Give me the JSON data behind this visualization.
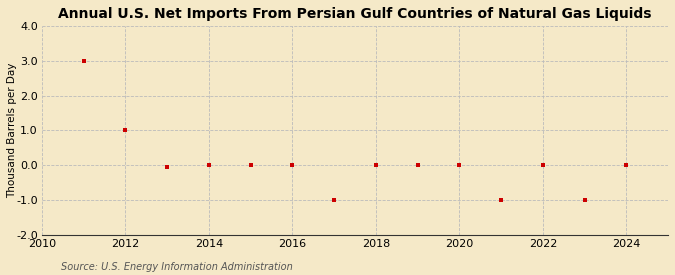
{
  "title": "Annual U.S. Net Imports From Persian Gulf Countries of Natural Gas Liquids",
  "ylabel": "Thousand Barrels per Day",
  "source": "Source: U.S. Energy Information Administration",
  "background_color": "#f5e9c8",
  "plot_bg_color": "#f5e9c8",
  "marker_color": "#cc0000",
  "grid_color": "#bbbbbb",
  "years": [
    2011,
    2012,
    2013,
    2014,
    2015,
    2016,
    2017,
    2018,
    2019,
    2020,
    2021,
    2022,
    2023,
    2024
  ],
  "values": [
    3.0,
    1.0,
    -0.05,
    0.0,
    0.0,
    0.0,
    -1.0,
    0.0,
    0.0,
    0.0,
    -1.0,
    0.0,
    -1.0,
    0.0
  ],
  "xlim": [
    2010,
    2025
  ],
  "ylim": [
    -2.0,
    4.0
  ],
  "yticks": [
    -2.0,
    -1.0,
    0.0,
    1.0,
    2.0,
    3.0,
    4.0
  ],
  "xticks": [
    2010,
    2012,
    2014,
    2016,
    2018,
    2020,
    2022,
    2024
  ],
  "title_fontsize": 10,
  "ylabel_fontsize": 7.5,
  "tick_fontsize": 8,
  "source_fontsize": 7
}
